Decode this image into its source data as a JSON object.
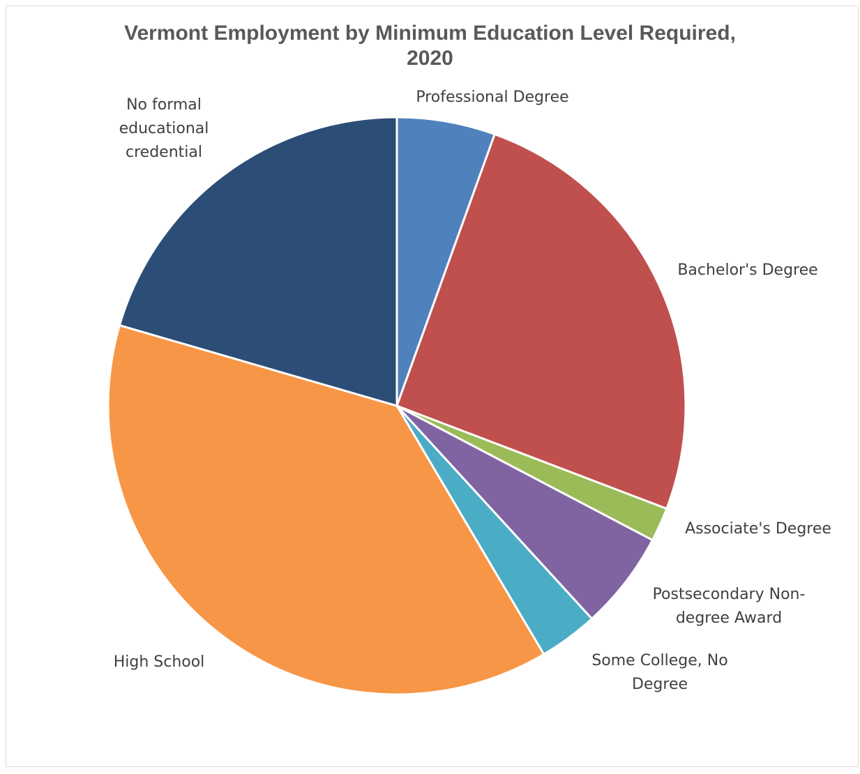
{
  "chart_data": {
    "type": "pie",
    "title": [
      "Vermont Employment  by Minimum Education Level Required,",
      "2020"
    ],
    "slices": [
      {
        "label": [
          "Professional Degree"
        ],
        "value": 5.5,
        "color": "#4F81BD"
      },
      {
        "label": [
          "Bachelor's Degree"
        ],
        "value": 25.3,
        "color": "#C0504D"
      },
      {
        "label": [
          "Associate's Degree"
        ],
        "value": 1.9,
        "color": "#9BBB59"
      },
      {
        "label": [
          "Postsecondary Non-",
          "degree Award"
        ],
        "value": 5.5,
        "color": "#8064A2"
      },
      {
        "label": [
          "Some College, No",
          "Degree"
        ],
        "value": 3.3,
        "color": "#4BACC6"
      },
      {
        "label": [
          "High School"
        ],
        "value": 38.0,
        "color": "#F79646"
      },
      {
        "label": [
          "No formal",
          "educational",
          "credential"
        ],
        "value": 20.5,
        "color": "#2C4D75"
      }
    ],
    "start_angle": "12 o'clock",
    "direction": "clockwise",
    "legend": "none",
    "data_labels": "category names outside slices"
  }
}
